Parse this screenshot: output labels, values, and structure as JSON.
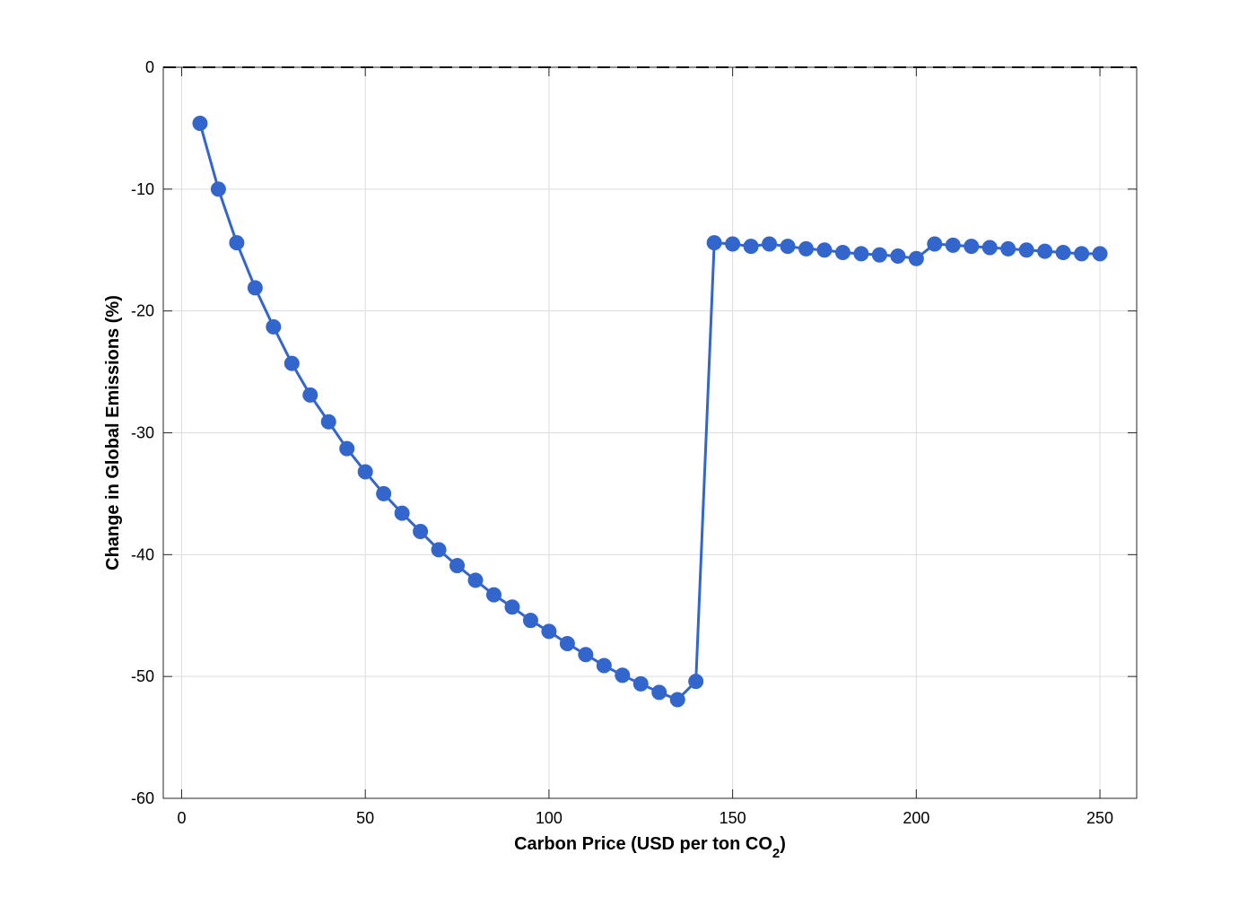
{
  "chart_data": {
    "type": "line",
    "title": "",
    "xlabel": "Carbon Price (USD per ton CO",
    "xlabel_subscript": "2",
    "xlabel_suffix": ")",
    "ylabel": "Change in Global Emissions (%)",
    "xlim": [
      -5,
      260
    ],
    "ylim": [
      -60,
      0
    ],
    "xticks": [
      0,
      50,
      100,
      150,
      200,
      250
    ],
    "xtick_labels": [
      "0",
      "50",
      "100",
      "150",
      "200",
      "250"
    ],
    "yticks": [
      -60,
      -50,
      -40,
      -30,
      -20,
      -10,
      0
    ],
    "ytick_labels": [
      "-60",
      "-50",
      "-40",
      "-30",
      "-20",
      "-10",
      "0"
    ],
    "grid": true,
    "reference_line": {
      "y": 0,
      "style": "dashed",
      "color": "#000000"
    },
    "series": [
      {
        "color": "#3366cc",
        "marker": "circle",
        "x": [
          5,
          10,
          15,
          20,
          25,
          30,
          35,
          40,
          45,
          50,
          55,
          60,
          65,
          70,
          75,
          80,
          85,
          90,
          95,
          100,
          105,
          110,
          115,
          120,
          125,
          130,
          135,
          140,
          145,
          150,
          155,
          160,
          165,
          170,
          175,
          180,
          185,
          190,
          195,
          200,
          205,
          210,
          215,
          220,
          225,
          230,
          235,
          240,
          245,
          250
        ],
        "y": [
          -4.6,
          -10.0,
          -14.4,
          -18.1,
          -21.3,
          -24.3,
          -26.9,
          -29.1,
          -31.3,
          -33.2,
          -35.0,
          -36.6,
          -38.1,
          -39.6,
          -40.9,
          -42.1,
          -43.3,
          -44.3,
          -45.4,
          -46.3,
          -47.3,
          -48.2,
          -49.1,
          -49.9,
          -50.6,
          -51.3,
          -51.9,
          -50.4,
          -14.4,
          -14.5,
          -14.7,
          -14.5,
          -14.7,
          -14.9,
          -15.0,
          -15.2,
          -15.3,
          -15.4,
          -15.5,
          -15.7,
          -14.5,
          -14.6,
          -14.7,
          -14.8,
          -14.9,
          -15.0,
          -15.1,
          -15.2,
          -15.3,
          -15.3
        ]
      }
    ]
  }
}
